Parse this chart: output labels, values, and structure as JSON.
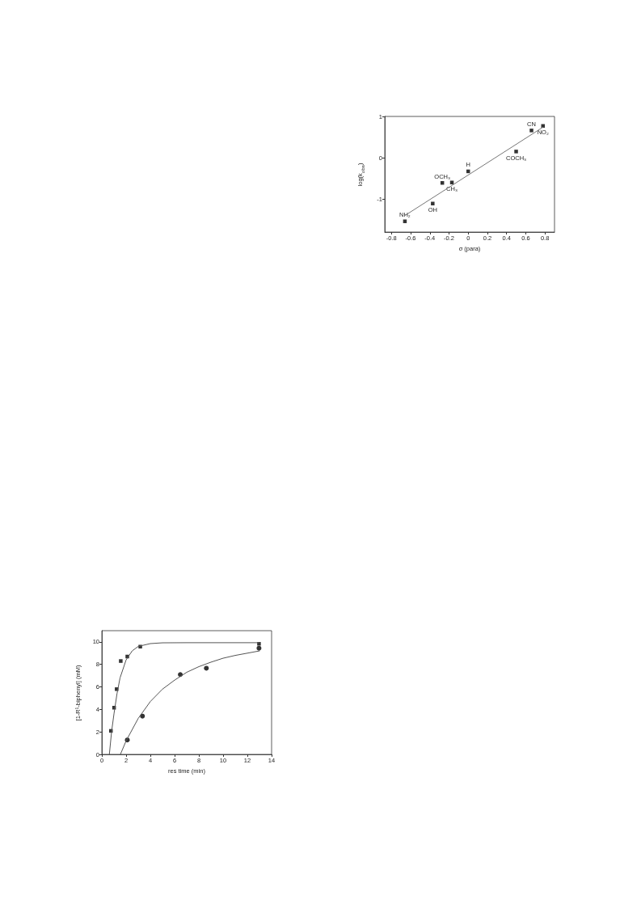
{
  "chart_data": [
    {
      "type": "scatter",
      "xlabel": "σ (para)",
      "ylabel": "log(k$_{obs}$)",
      "xlim": [
        -0.87,
        0.9
      ],
      "ylim": [
        -1.8,
        1
      ],
      "xticks": [
        -0.8,
        -0.6,
        -0.4,
        -0.2,
        0.0,
        0.2,
        0.4,
        0.6,
        0.8
      ],
      "yticks": [
        -1,
        0,
        1
      ],
      "grid": false,
      "marker": "square",
      "series": [
        {
          "color": "#000000",
          "x": [
            -0.66,
            -0.37,
            -0.27,
            -0.17,
            0.0,
            0.5,
            0.66,
            0.78
          ],
          "values": [
            -1.54,
            -1.11,
            -0.61,
            -0.6,
            -0.33,
            0.15,
            0.66,
            0.77
          ]
        },
        {
          "type": "line",
          "color": "#777777",
          "marker": "none",
          "x": [
            -0.66,
            0.78
          ],
          "values": [
            -1.4,
            0.74
          ]
        }
      ],
      "annotations": [
        {
          "text": "NH₂",
          "x": -0.66,
          "y": -1.54
        },
        {
          "text": "OH",
          "x": -0.37,
          "y": -1.11
        },
        {
          "text": "OCH₃",
          "x": -0.27,
          "y": -0.61
        },
        {
          "text": "CH₃",
          "x": -0.17,
          "y": -0.6
        },
        {
          "text": "H",
          "x": 0.0,
          "y": -0.33
        },
        {
          "text": "COCH₃",
          "x": 0.5,
          "y": 0.15
        },
        {
          "text": "CN",
          "x": 0.66,
          "y": 0.66
        },
        {
          "text": "NO₂",
          "x": 0.78,
          "y": 0.77
        }
      ]
    },
    {
      "type": "scatter",
      "xlabel": "res time (min)",
      "ylabel": "[1-R¹-biphenyl] (mM)",
      "xlim": [
        0,
        14
      ],
      "ylim": [
        0,
        11
      ],
      "xticks": [
        0,
        2,
        4,
        6,
        8,
        10,
        12,
        14
      ],
      "yticks": [
        0,
        2,
        4,
        6,
        8,
        10
      ],
      "grid": false,
      "series": [
        {
          "marker": "square",
          "color": "#000000",
          "x": [
            0.75,
            1.01,
            1.22,
            1.56,
            2.1,
            3.17,
            12.96
          ],
          "values": [
            2.09,
            4.15,
            5.8,
            8.3,
            8.7,
            9.58,
            9.83
          ]
        },
        {
          "marker": "circle",
          "color": "#000000",
          "x": [
            2.1,
            3.35,
            6.47,
            8.62,
            12.96
          ],
          "values": [
            1.28,
            3.4,
            7.1,
            7.66,
            9.44
          ]
        },
        {
          "type": "line",
          "marker": "none",
          "color": "#555555",
          "x": [
            0.62,
            0.8,
            1.0,
            1.25,
            1.5,
            2,
            2.5,
            3,
            4,
            5,
            7,
            13
          ],
          "values": [
            0,
            2.0,
            3.6,
            5.4,
            6.8,
            8.4,
            9.2,
            9.6,
            9.85,
            9.92,
            9.93,
            9.93
          ]
        },
        {
          "type": "line",
          "marker": "none",
          "color": "#555555",
          "x": [
            1.53,
            2,
            3,
            4,
            5,
            6,
            7,
            8,
            9,
            10,
            11,
            12,
            13
          ],
          "values": [
            0,
            1.2,
            3.2,
            4.7,
            5.8,
            6.6,
            7.3,
            7.8,
            8.2,
            8.55,
            8.8,
            9.0,
            9.2
          ]
        }
      ]
    }
  ]
}
